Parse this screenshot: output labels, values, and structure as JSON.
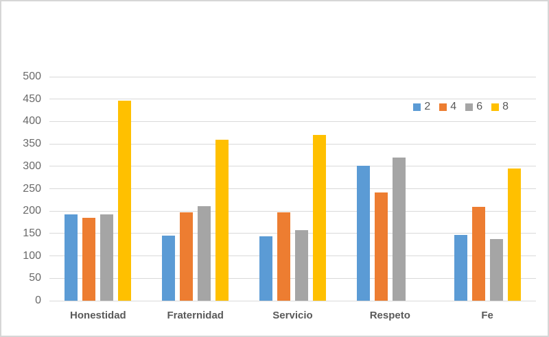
{
  "frame": {
    "background": "#ffffff",
    "border_color": "#d6d6d6"
  },
  "axes": {
    "gridline_color": "#d9d9d9",
    "tick_label_color": "#696969",
    "category_label_color": "#595959"
  },
  "legend": {
    "text_color": "#595959"
  },
  "chart_data": {
    "type": "bar",
    "title": "",
    "xlabel": "",
    "ylabel": "",
    "categories": [
      "Honestidad",
      "Fraternidad",
      "Servicio",
      "Respeto",
      "Fe"
    ],
    "series": [
      {
        "name": "2",
        "color": "#5B9BD5",
        "values": [
          193,
          145,
          143,
          302,
          147
        ]
      },
      {
        "name": "4",
        "color": "#ED7D31",
        "values": [
          185,
          198,
          198,
          241,
          210
        ]
      },
      {
        "name": "6",
        "color": "#A5A5A5",
        "values": [
          193,
          211,
          158,
          320,
          138
        ]
      },
      {
        "name": "8",
        "color": "#FFC000",
        "values": [
          447,
          359,
          370,
          null,
          295
        ]
      }
    ],
    "ylim": [
      0,
      500
    ],
    "ytick_step": 50,
    "ytick_labels": [
      "0",
      "50",
      "100",
      "150",
      "200",
      "250",
      "300",
      "350",
      "400",
      "450",
      "500"
    ],
    "grid": true,
    "legend_position": "top-right",
    "legend_entries": [
      "2",
      "4",
      "6",
      "8"
    ]
  }
}
